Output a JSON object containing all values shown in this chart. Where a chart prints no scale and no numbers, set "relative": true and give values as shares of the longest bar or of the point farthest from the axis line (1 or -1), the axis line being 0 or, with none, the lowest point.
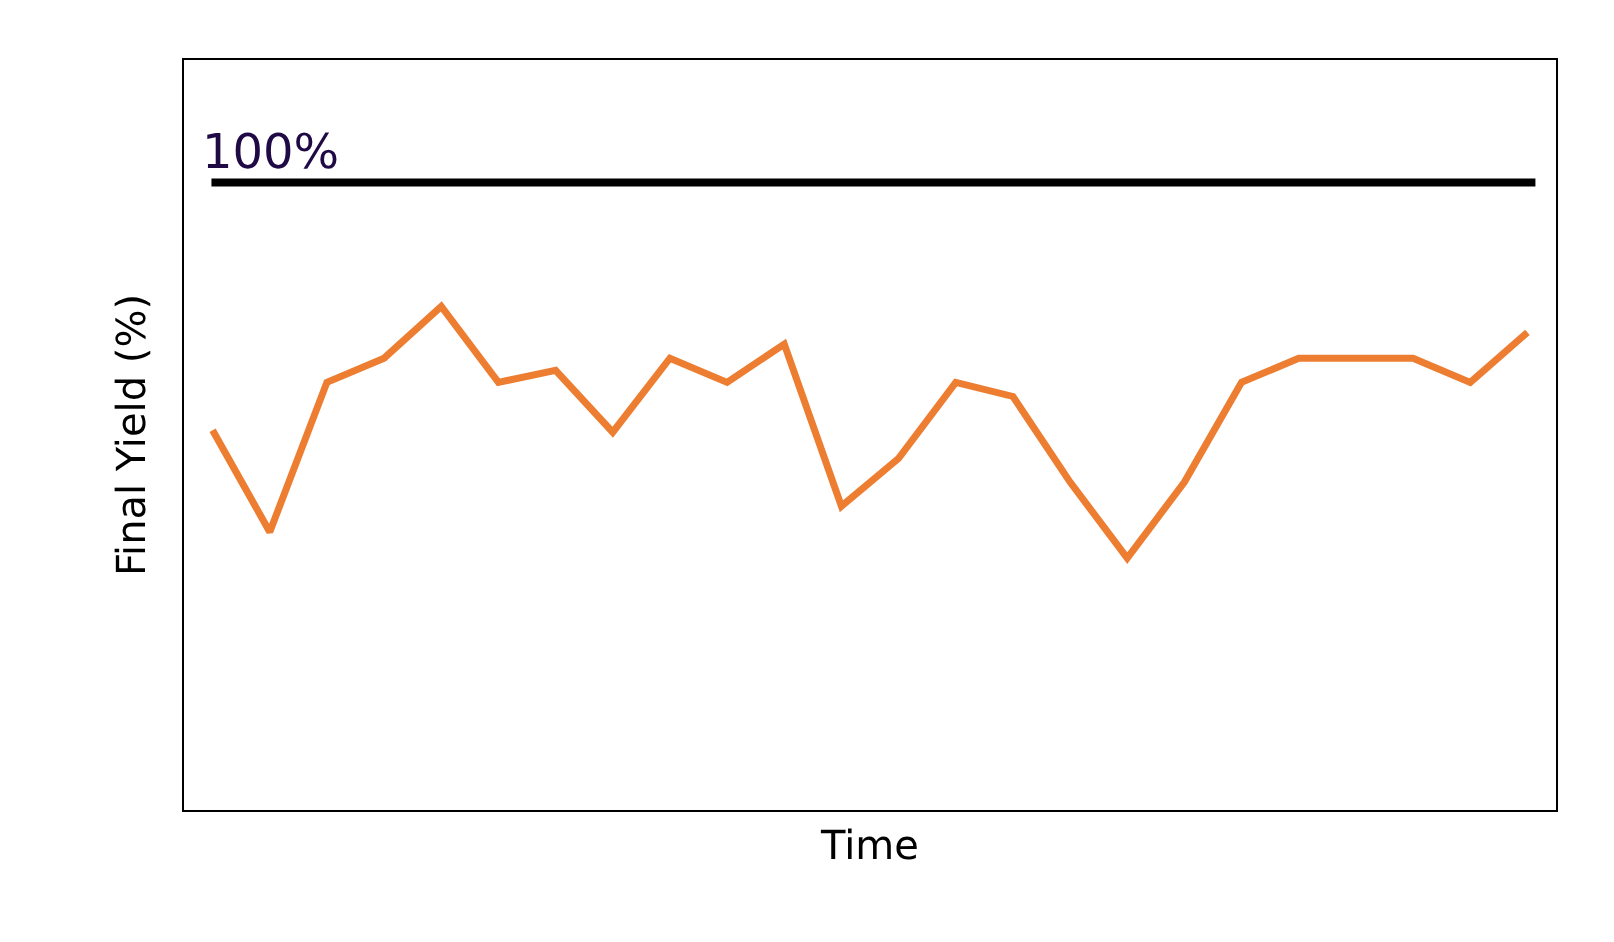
{
  "chart_data": {
    "type": "line",
    "relative": true,
    "xlabel": "Time",
    "ylabel": "Final Yield (%)",
    "categories": [
      null,
      null,
      null,
      null,
      null,
      null,
      null,
      null,
      null,
      null,
      null,
      null,
      null,
      null,
      null,
      null,
      null,
      null,
      null,
      null,
      null,
      null,
      null,
      null
    ],
    "series": [
      {
        "color": "#ed7d31",
        "values": [
          0.754,
          0.552,
          0.849,
          0.897,
          1,
          0.849,
          0.873,
          0.75,
          0.897,
          0.849,
          0.925,
          0.603,
          0.698,
          0.849,
          0.821,
          0.651,
          0.5,
          0.651,
          0.849,
          0.897,
          0.897,
          0.897,
          0.849,
          0.948
        ]
      }
    ],
    "ref_lines": [
      {
        "axis": "y",
        "value": 1.246,
        "color": "#000000"
      }
    ],
    "annotations": [
      "100%"
    ],
    "grid": false,
    "marker": "none",
    "line_style": "solid"
  }
}
